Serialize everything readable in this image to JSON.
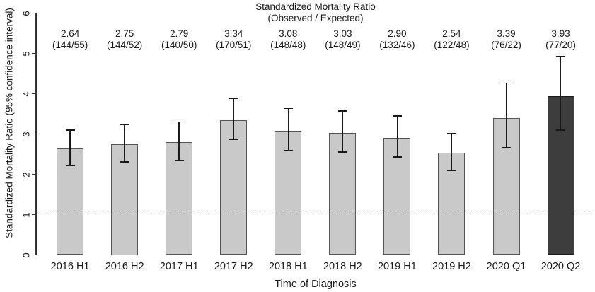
{
  "title": {
    "line1": "Standardized Mortality Ratio",
    "line2": "(Observed / Expected)"
  },
  "y_axis": {
    "label": "Standardized Mortality Ratio (95% confidence interval)",
    "ticks": [
      0,
      1,
      2,
      3,
      4,
      5,
      6
    ],
    "min": 0,
    "max": 6
  },
  "x_axis": {
    "label": "Time of Diagnosis"
  },
  "colors": {
    "bar_fill": "#c9c9c9",
    "bar_border": "#555557",
    "highlight_fill": "#3d3d3d",
    "highlight_border": "#1a1a1a",
    "error_bar": "#1a1a1a",
    "axis": "#333333",
    "reference_line": "#3c3c3c",
    "text": "#1a1a1a"
  },
  "chart_data": {
    "type": "bar",
    "title": "Standardized Mortality Ratio (Observed / Expected)",
    "xlabel": "Time of Diagnosis",
    "ylabel": "Standardized Mortality Ratio (95% confidence interval)",
    "ylim": [
      0,
      6
    ],
    "grid": false,
    "reference_line": 1,
    "categories": [
      "2016 H1",
      "2016 H2",
      "2017 H1",
      "2017 H2",
      "2018 H1",
      "2018 H2",
      "2019 H1",
      "2019 H2",
      "2020 Q1",
      "2020 Q2"
    ],
    "values": [
      2.64,
      2.75,
      2.79,
      3.34,
      3.08,
      3.03,
      2.9,
      2.54,
      3.39,
      3.93
    ],
    "value_labels": [
      "2.64",
      "2.75",
      "2.79",
      "3.34",
      "3.08",
      "3.03",
      "2.90",
      "2.54",
      "3.39",
      "3.93"
    ],
    "fraction_labels": [
      "(144/55)",
      "(144/52)",
      "(140/50)",
      "(170/51)",
      "(148/48)",
      "(148/49)",
      "(132/46)",
      "(122/48)",
      "(76/22)",
      "(77/20)"
    ],
    "observed": [
      144,
      144,
      140,
      170,
      148,
      148,
      132,
      122,
      76,
      77
    ],
    "expected": [
      55,
      52,
      50,
      51,
      48,
      49,
      46,
      48,
      22,
      20
    ],
    "ci_low": [
      2.22,
      2.31,
      2.34,
      2.86,
      2.6,
      2.55,
      2.43,
      2.1,
      2.67,
      3.1
    ],
    "ci_high": [
      3.1,
      3.23,
      3.3,
      3.89,
      3.63,
      3.57,
      3.45,
      3.02,
      4.26,
      4.92
    ],
    "highlight_index": 9
  }
}
